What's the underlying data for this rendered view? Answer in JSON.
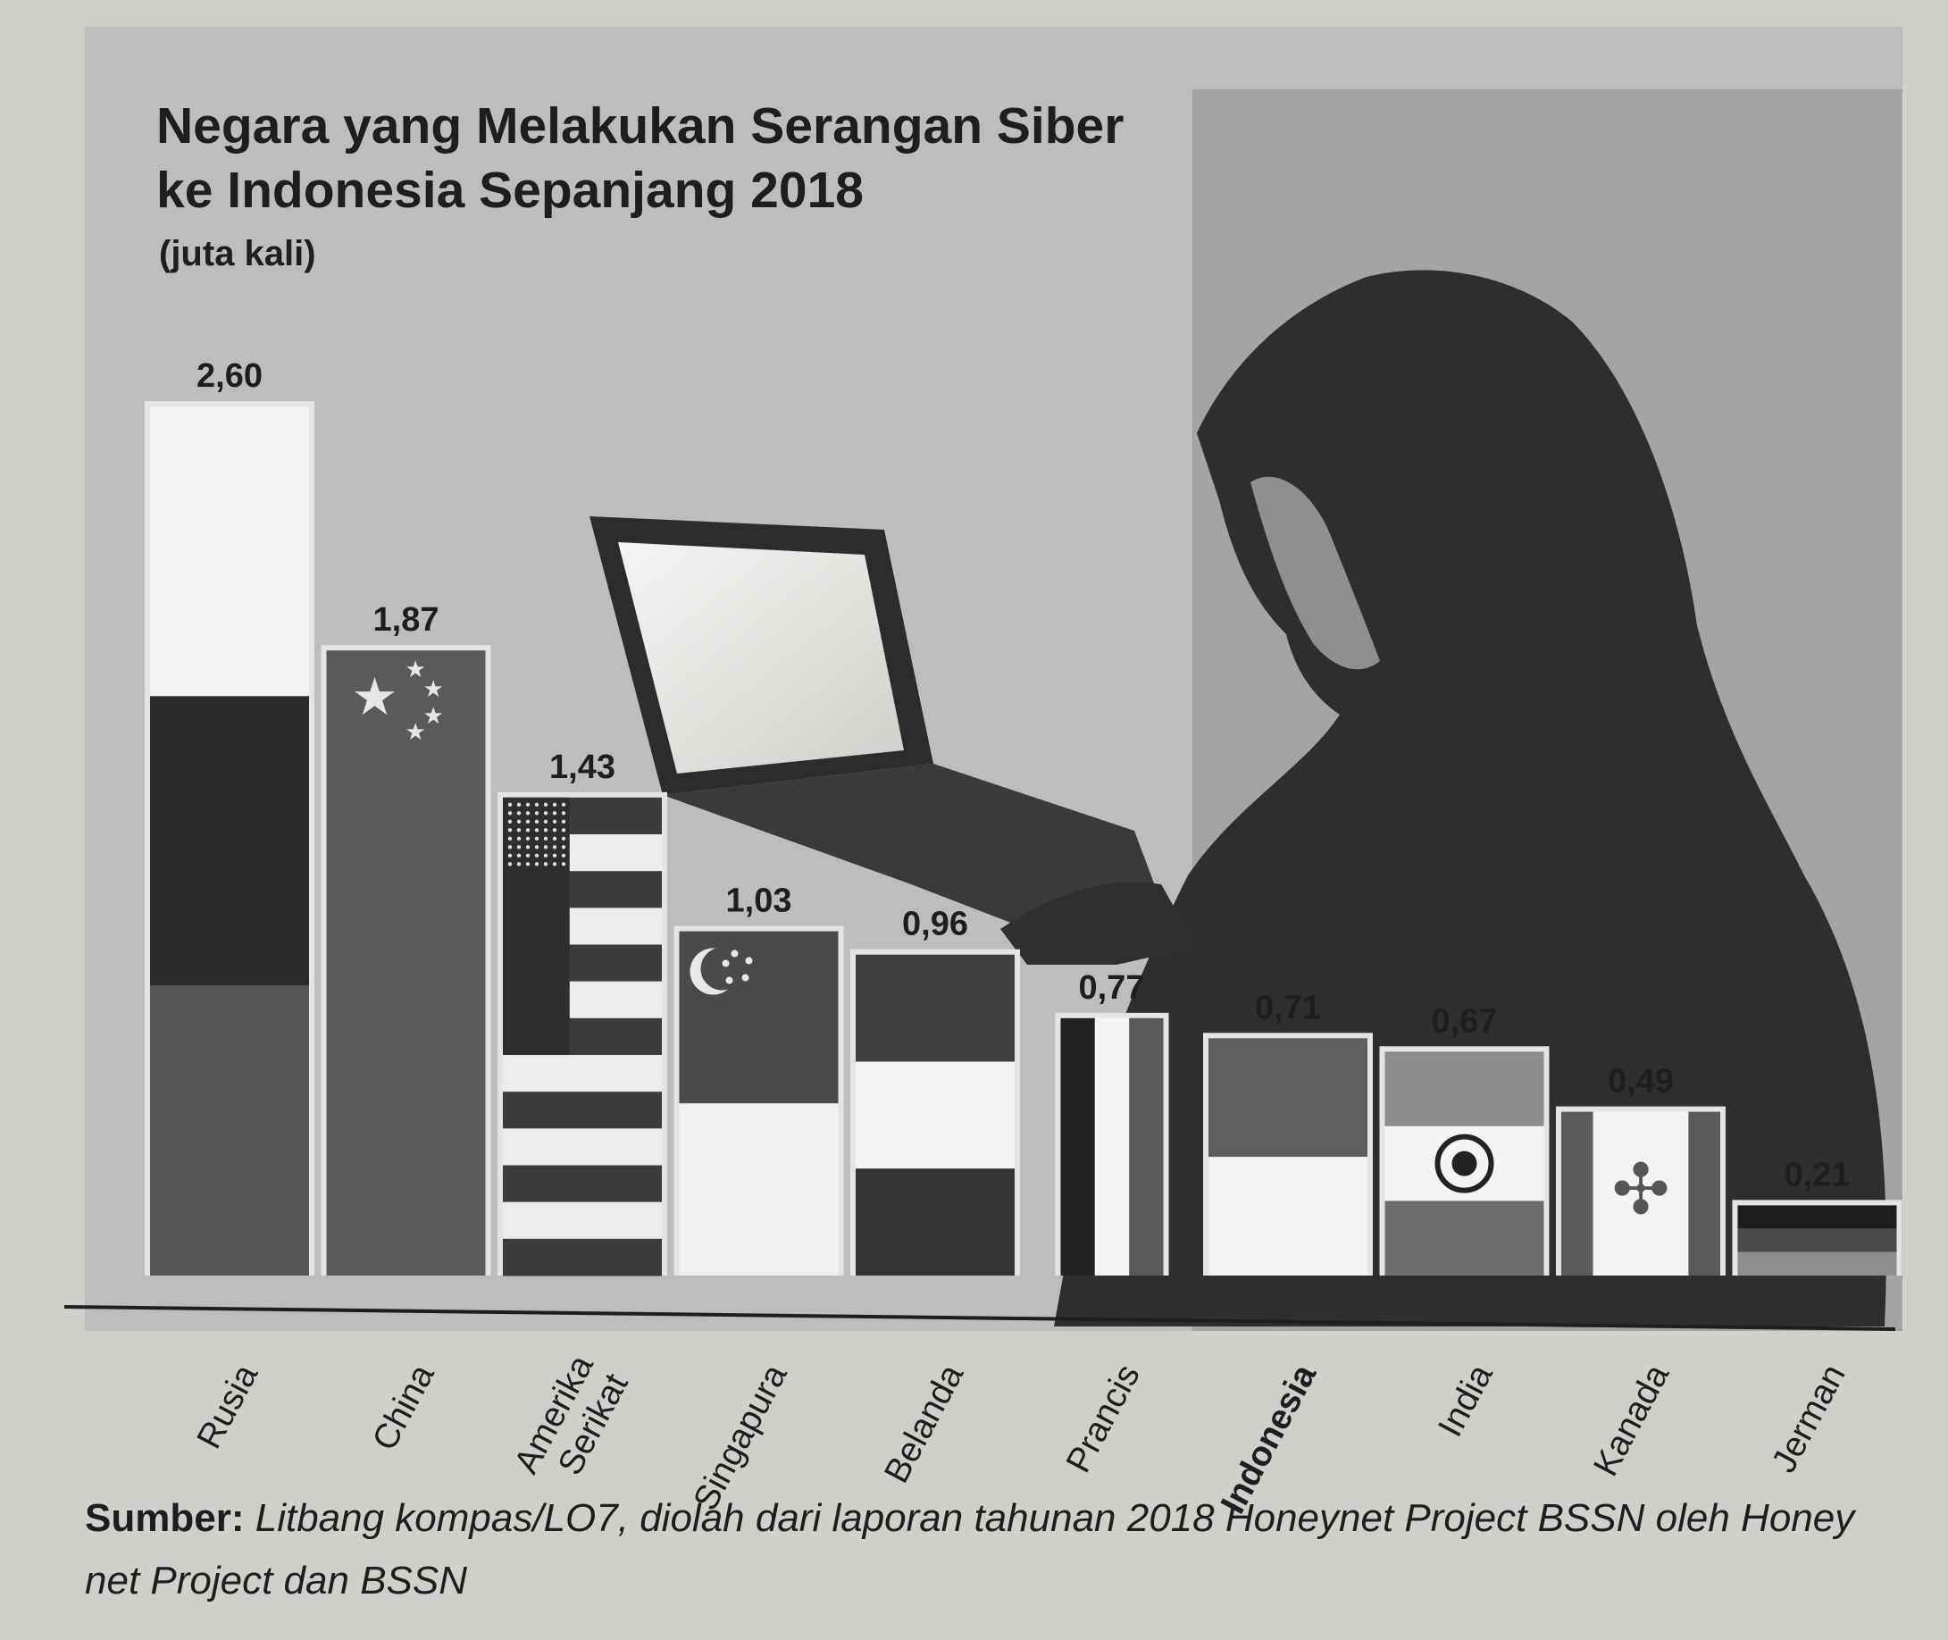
{
  "title_line1": "Negara yang Melakukan Serangan Siber",
  "title_line2": "ke Indonesia Sepanjang 2018",
  "unit": "(juta kali)",
  "source_label": "Sumber:",
  "source_text": "Litbang kompas/LO7, diolah dari laporan tahunan 2018 Honeynet Project BSSN oleh Honey net Project dan BSSN",
  "chart_data": {
    "type": "bar",
    "title": "Negara yang Melakukan Serangan Siber ke Indonesia Sepanjang 2018",
    "ylabel": "(juta kali)",
    "categories": [
      "Rusia",
      "China",
      "Amerika Serikat",
      "Singapura",
      "Belanda",
      "Prancis",
      "Indonesia",
      "India",
      "Kanada",
      "Jerman"
    ],
    "values": [
      2.6,
      1.87,
      1.43,
      1.03,
      0.96,
      0.77,
      0.71,
      0.67,
      0.49,
      0.21
    ],
    "value_labels": [
      "2,60",
      "1,87",
      "1,43",
      "1,03",
      "0,96",
      "0,77",
      "0,71",
      "0,67",
      "0,49",
      "0,21"
    ],
    "ylim": [
      0,
      2.6
    ],
    "grid": false,
    "legend": "none",
    "bar_fill": "national-flag-pattern"
  }
}
